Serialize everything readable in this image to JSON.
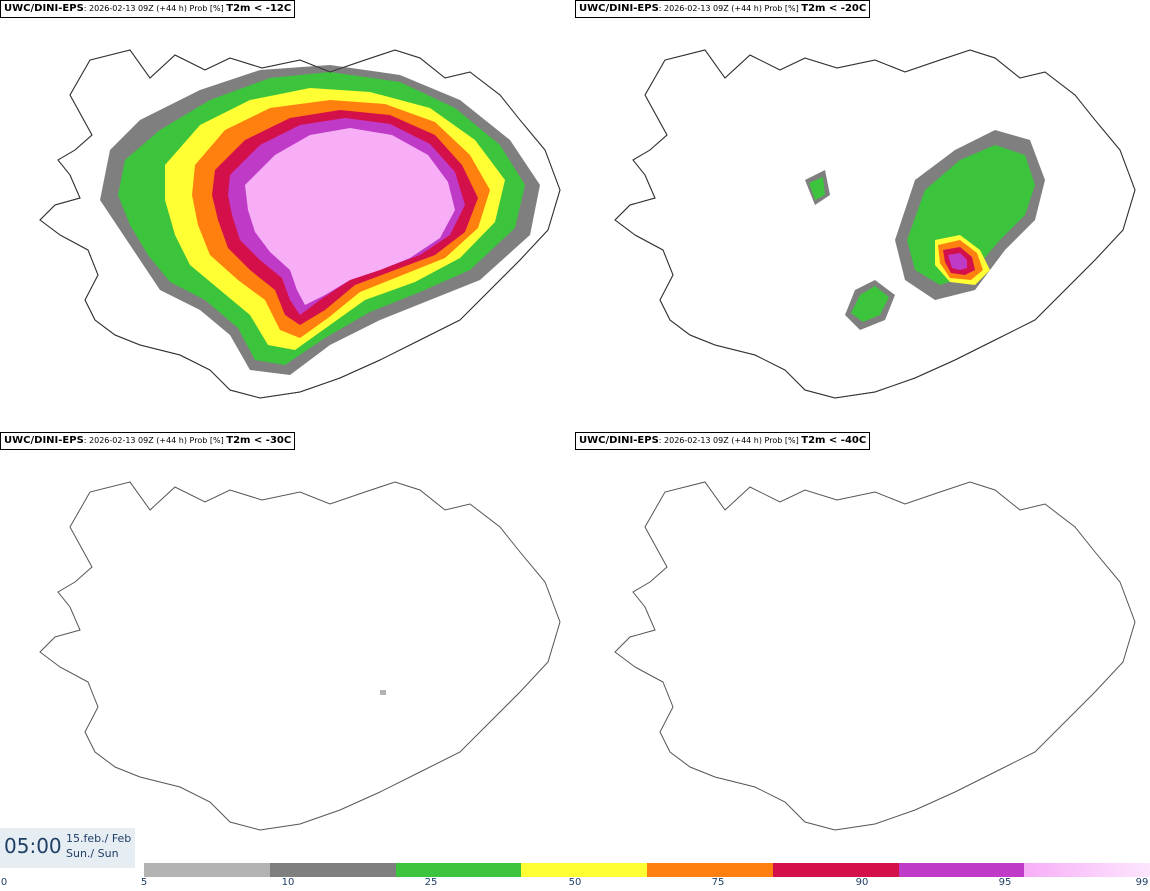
{
  "panels": [
    {
      "model": "UWC/DINI-EPS",
      "run": "2026-02-13 09Z (+44 h) Prob [%]",
      "variable": "T2m < -12C"
    },
    {
      "model": "UWC/DINI-EPS",
      "run": "2026-02-13 09Z (+44 h) Prob [%]",
      "variable": "T2m < -20C"
    },
    {
      "model": "UWC/DINI-EPS",
      "run": "2026-02-13 09Z (+44 h) Prob [%]",
      "variable": "T2m < -30C"
    },
    {
      "model": "UWC/DINI-EPS",
      "run": "2026-02-13 09Z (+44 h) Prob [%]",
      "variable": "T2m < -40C"
    }
  ],
  "valid": {
    "time": "05:00",
    "date_line1": "15.feb./ Feb",
    "date_line2": "Sun./ Sun"
  },
  "colorbar": {
    "labels": [
      "0",
      "5",
      "10",
      "25",
      "50",
      "75",
      "90",
      "95",
      "99"
    ],
    "colors": [
      "#b3b3b3",
      "#7f7f7f",
      "#3cc43c",
      "#ffff33",
      "#ff7f0f",
      "#d4104a",
      "#c03ac8",
      "#f7aef7"
    ]
  }
}
